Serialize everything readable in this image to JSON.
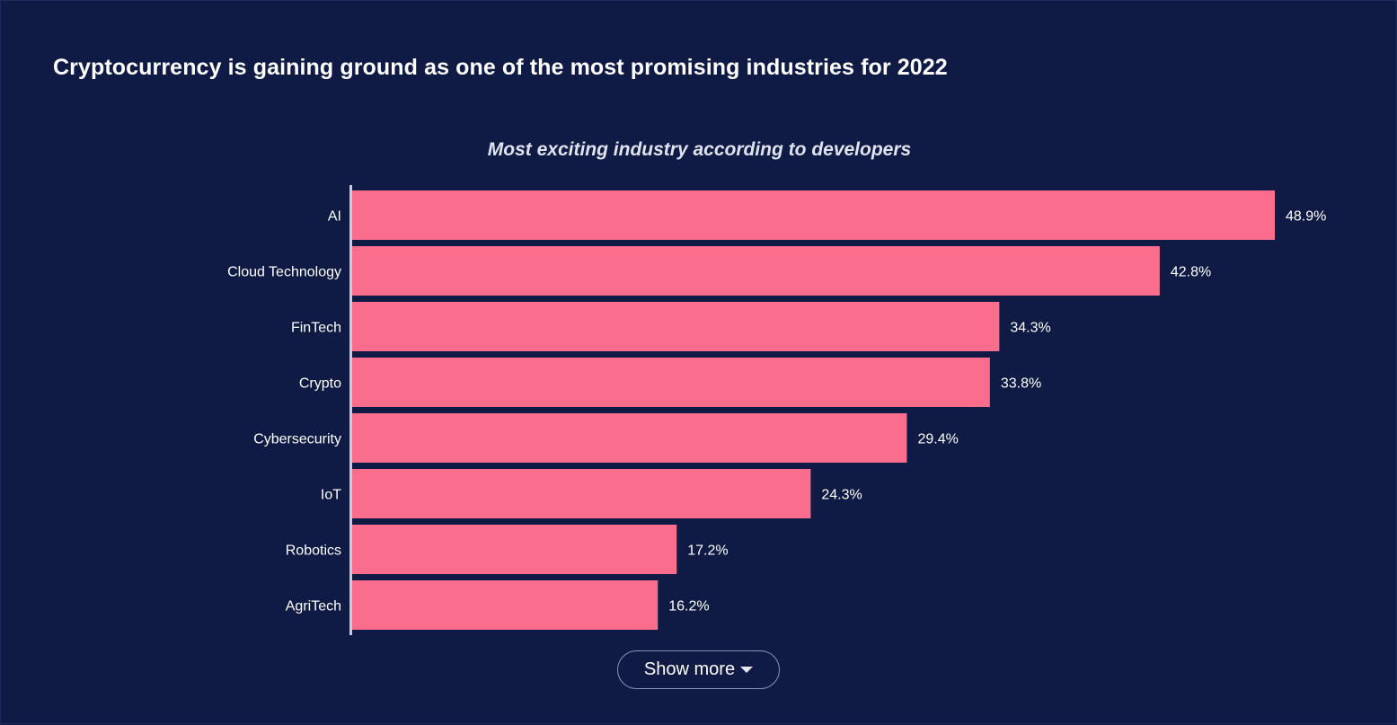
{
  "page": {
    "title": "Cryptocurrency is gaining ground as one of the most promising industries for 2022"
  },
  "show_more": {
    "label": "Show more",
    "icon": "caret-down-icon"
  },
  "colors": {
    "background": "#0f1b44",
    "bar": "#fb6d8c",
    "text": "#ffffff"
  },
  "chart_data": {
    "type": "bar",
    "orientation": "horizontal",
    "title": "Most exciting industry according to developers",
    "categories": [
      "AI",
      "Cloud Technology",
      "FinTech",
      "Crypto",
      "Cybersecurity",
      "IoT",
      "Robotics",
      "AgriTech"
    ],
    "values": [
      48.9,
      42.8,
      34.3,
      33.8,
      29.4,
      24.3,
      17.2,
      16.2
    ],
    "labels": [
      "48.9%",
      "42.8%",
      "34.3%",
      "33.8%",
      "29.4%",
      "24.3%",
      "17.2%",
      "16.2%"
    ],
    "unit": "%",
    "xlim": [
      0,
      48.9
    ],
    "grid": false,
    "legend": "none"
  }
}
